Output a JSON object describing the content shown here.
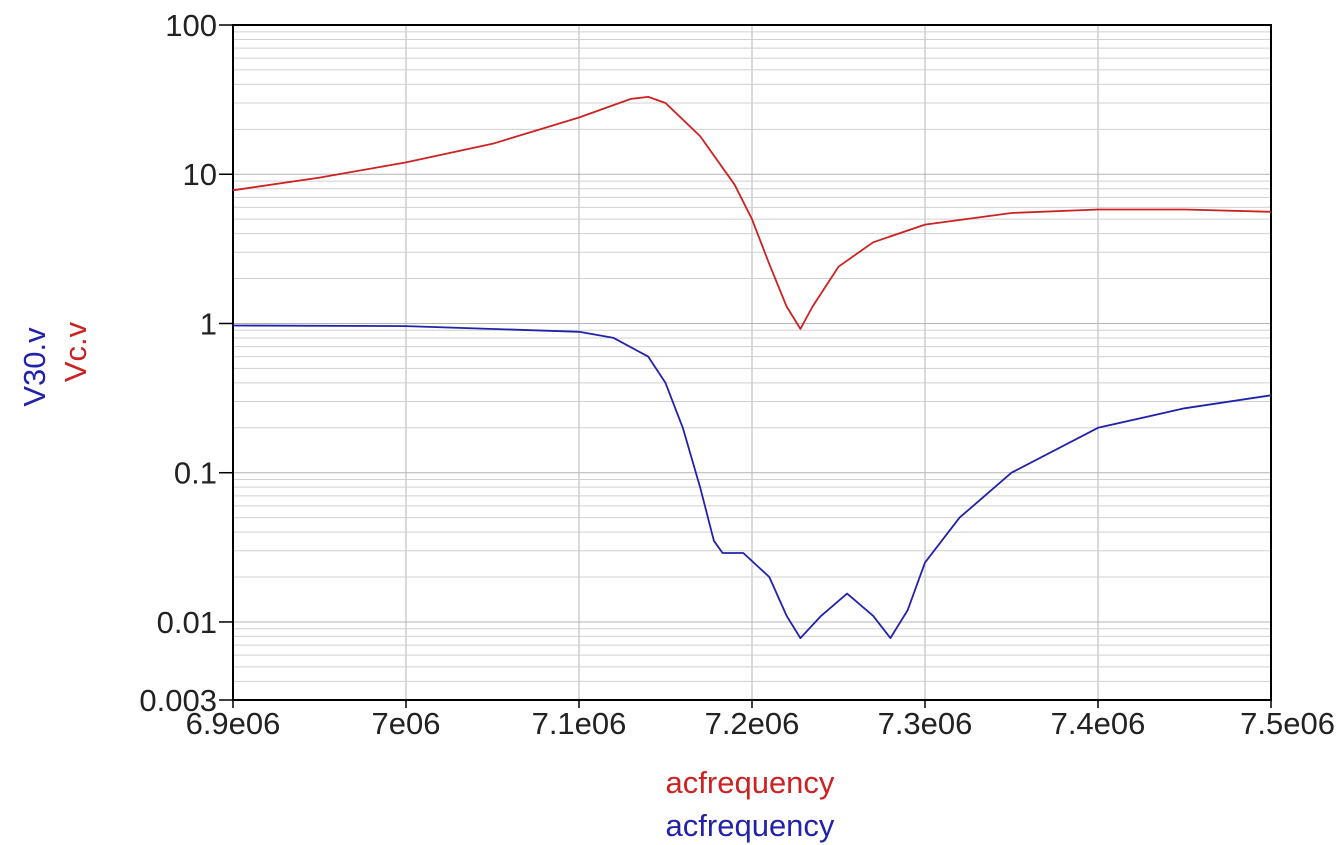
{
  "chart_data": {
    "type": "line",
    "title": "",
    "x_scale": "linear",
    "y_scale": "log",
    "xlim": [
      6900000,
      7500000
    ],
    "ylim": [
      0.003,
      100
    ],
    "grid": true,
    "legend": "none",
    "x_tick_values": [
      6900000,
      7000000,
      7100000,
      7200000,
      7300000,
      7400000,
      7500000
    ],
    "x_tick_labels": [
      "6.9e06",
      "7e06",
      "7.1e06",
      "7.2e06",
      "7.3e06",
      "7.4e06",
      "7.5e06"
    ],
    "y_tick_values": [
      100,
      10,
      1,
      0.1,
      0.01,
      0.003
    ],
    "y_tick_labels": [
      "100",
      "10",
      "1",
      "0.1",
      "0.01",
      "0.003"
    ],
    "xlabels": [
      {
        "text": "acfrequency",
        "color": "#cc2222"
      },
      {
        "text": "acfrequency",
        "color": "#2222aa"
      }
    ],
    "ylabels": [
      {
        "text": "V30.v",
        "color": "#2222aa"
      },
      {
        "text": "Vc.v",
        "color": "#cc2222"
      }
    ],
    "series": [
      {
        "name": "Vc.v",
        "color": "#cc2222",
        "points": [
          [
            6900000,
            7.8
          ],
          [
            6950000,
            9.5
          ],
          [
            7000000,
            12
          ],
          [
            7050000,
            16
          ],
          [
            7100000,
            24
          ],
          [
            7130000,
            32
          ],
          [
            7140000,
            33
          ],
          [
            7150000,
            30
          ],
          [
            7170000,
            18
          ],
          [
            7190000,
            8.5
          ],
          [
            7200000,
            5
          ],
          [
            7210000,
            2.5
          ],
          [
            7220000,
            1.3
          ],
          [
            7228000,
            0.92
          ],
          [
            7235000,
            1.3
          ],
          [
            7250000,
            2.4
          ],
          [
            7270000,
            3.5
          ],
          [
            7300000,
            4.6
          ],
          [
            7350000,
            5.5
          ],
          [
            7400000,
            5.8
          ],
          [
            7450000,
            5.8
          ],
          [
            7500000,
            5.6
          ]
        ]
      },
      {
        "name": "V30.v",
        "color": "#2222aa",
        "points": [
          [
            6900000,
            0.97
          ],
          [
            7000000,
            0.96
          ],
          [
            7100000,
            0.88
          ],
          [
            7120000,
            0.8
          ],
          [
            7140000,
            0.6
          ],
          [
            7150000,
            0.4
          ],
          [
            7160000,
            0.2
          ],
          [
            7170000,
            0.08
          ],
          [
            7178000,
            0.035
          ],
          [
            7183000,
            0.029
          ],
          [
            7195000,
            0.029
          ],
          [
            7210000,
            0.02
          ],
          [
            7220000,
            0.011
          ],
          [
            7228000,
            0.0078
          ],
          [
            7240000,
            0.011
          ],
          [
            7255000,
            0.0155
          ],
          [
            7270000,
            0.011
          ],
          [
            7280000,
            0.0078
          ],
          [
            7290000,
            0.012
          ],
          [
            7300000,
            0.025
          ],
          [
            7320000,
            0.05
          ],
          [
            7350000,
            0.1
          ],
          [
            7400000,
            0.2
          ],
          [
            7450000,
            0.27
          ],
          [
            7500000,
            0.33
          ]
        ]
      }
    ]
  }
}
